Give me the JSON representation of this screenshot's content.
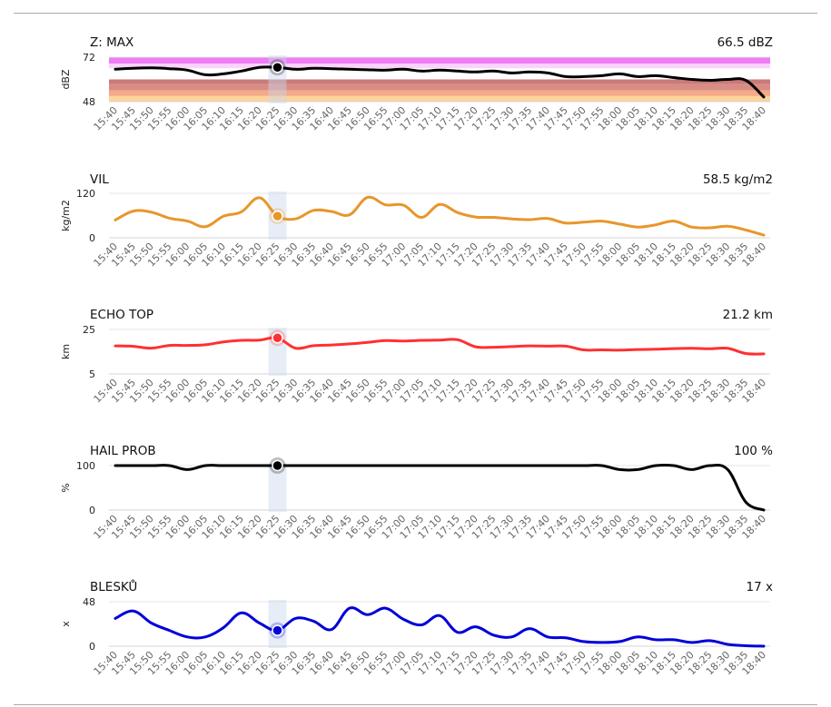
{
  "chart_data": [
    {
      "type": "line",
      "title": "Z: MAX",
      "current_value": "66.5 dBZ",
      "ylabel": "dBZ",
      "ylim": [
        48,
        72
      ],
      "yticks": [
        "72",
        "48"
      ],
      "color": "#000000",
      "bands": [
        {
          "from": 68.5,
          "to": 72,
          "color": "#f07cf4"
        },
        {
          "from": 66,
          "to": 68.5,
          "color": "#fad2fb"
        },
        {
          "from": 57.5,
          "to": 60,
          "color": "#c97a7a"
        },
        {
          "from": 54,
          "to": 57.5,
          "color": "#d98c84"
        },
        {
          "from": 51,
          "to": 54,
          "color": "#f4a987"
        },
        {
          "from": 48,
          "to": 51,
          "color": "#ffd39a"
        }
      ],
      "x": [
        "15:40",
        "15:45",
        "15:50",
        "15:55",
        "16:00",
        "16:05",
        "16:10",
        "16:15",
        "16:20",
        "16:25",
        "16:30",
        "16:35",
        "16:40",
        "16:45",
        "16:50",
        "16:55",
        "17:00",
        "17:05",
        "17:10",
        "17:15",
        "17:20",
        "17:25",
        "17:30",
        "17:35",
        "17:40",
        "17:45",
        "17:50",
        "17:55",
        "18:00",
        "18:05",
        "18:10",
        "18:15",
        "18:20",
        "18:25",
        "18:30",
        "18:35",
        "18:40"
      ],
      "values": [
        65.5,
        66,
        66.2,
        65.8,
        65,
        62.5,
        63,
        64.5,
        66.5,
        66.5,
        65.5,
        66,
        65.8,
        65.5,
        65.2,
        65,
        65.5,
        64.5,
        65,
        64.5,
        64,
        64.5,
        63.5,
        64,
        63.5,
        61.5,
        61.5,
        62,
        63,
        61.5,
        62,
        61,
        60,
        59.5,
        60,
        59.5,
        50.5
      ],
      "selected": "16:25"
    },
    {
      "type": "line",
      "title": "VIL",
      "current_value": "58.5 kg/m2",
      "ylabel": "kg/m2",
      "ylim": [
        0,
        120
      ],
      "yticks": [
        "120",
        "0"
      ],
      "color": "#e8962a",
      "x": [
        "15:40",
        "15:45",
        "15:50",
        "15:55",
        "16:00",
        "16:05",
        "16:10",
        "16:15",
        "16:20",
        "16:25",
        "16:30",
        "16:35",
        "16:40",
        "16:45",
        "16:50",
        "16:55",
        "17:00",
        "17:05",
        "17:10",
        "17:15",
        "17:20",
        "17:25",
        "17:30",
        "17:35",
        "17:40",
        "17:45",
        "17:50",
        "17:55",
        "18:00",
        "18:05",
        "18:10",
        "18:15",
        "18:20",
        "18:25",
        "18:30",
        "18:35",
        "18:40"
      ],
      "values": [
        48,
        72,
        69,
        53,
        45,
        30,
        58,
        70,
        108,
        58.5,
        51,
        74,
        71,
        62,
        109,
        89,
        88,
        55,
        90,
        68,
        56,
        55,
        51,
        49,
        52,
        40,
        42,
        45,
        37,
        29,
        35,
        45,
        29,
        27,
        31,
        21,
        7
      ],
      "selected": "16:25"
    },
    {
      "type": "line",
      "title": "ECHO TOP",
      "current_value": "21.2 km",
      "ylabel": "km",
      "ylim": [
        5,
        25
      ],
      "yticks": [
        "25",
        "5"
      ],
      "color": "#ff3030",
      "x": [
        "15:40",
        "15:45",
        "15:50",
        "15:55",
        "16:00",
        "16:05",
        "16:10",
        "16:15",
        "16:20",
        "16:25",
        "16:30",
        "16:35",
        "16:40",
        "16:45",
        "16:50",
        "16:55",
        "17:00",
        "17:05",
        "17:10",
        "17:15",
        "17:20",
        "17:25",
        "17:30",
        "17:35",
        "17:40",
        "17:45",
        "17:50",
        "17:55",
        "18:00",
        "18:05",
        "18:10",
        "18:15",
        "18:20",
        "18:25",
        "18:30",
        "18:35",
        "18:40"
      ],
      "values": [
        17.6,
        17.4,
        16.6,
        17.8,
        17.8,
        18.1,
        19.4,
        20.1,
        20.2,
        21.2,
        16.6,
        17.7,
        18,
        18.5,
        19.2,
        20,
        19.8,
        20.1,
        20.2,
        20.4,
        17.2,
        17,
        17.3,
        17.6,
        17.5,
        17.5,
        15.8,
        15.8,
        15.7,
        16,
        16.1,
        16.4,
        16.5,
        16.3,
        16.5,
        14.2,
        14
      ],
      "selected": "16:25"
    },
    {
      "type": "line",
      "title": "HAIL PROB",
      "current_value": "100 %",
      "ylabel": "%",
      "ylim": [
        0,
        100
      ],
      "yticks": [
        "100",
        "0"
      ],
      "color": "#000000",
      "x": [
        "15:40",
        "15:45",
        "15:50",
        "15:55",
        "16:00",
        "16:05",
        "16:10",
        "16:15",
        "16:20",
        "16:25",
        "16:30",
        "16:35",
        "16:40",
        "16:45",
        "16:50",
        "16:55",
        "17:00",
        "17:05",
        "17:10",
        "17:15",
        "17:20",
        "17:25",
        "17:30",
        "17:35",
        "17:40",
        "17:45",
        "17:50",
        "17:55",
        "18:00",
        "18:05",
        "18:10",
        "18:15",
        "18:20",
        "18:25",
        "18:30",
        "18:35",
        "18:40"
      ],
      "values": [
        100,
        100,
        100,
        100,
        91,
        100,
        100,
        100,
        100,
        100,
        100,
        100,
        100,
        100,
        100,
        100,
        100,
        100,
        100,
        100,
        100,
        100,
        100,
        100,
        100,
        100,
        100,
        100,
        91,
        91,
        100,
        100,
        91,
        100,
        91,
        18,
        0
      ],
      "selected": "16:25"
    },
    {
      "type": "line",
      "title": "BLESKŮ",
      "current_value": "17 x",
      "ylabel": "x",
      "ylim": [
        0,
        48
      ],
      "yticks": [
        "48",
        "0"
      ],
      "color": "#0000d8",
      "x": [
        "15:40",
        "15:45",
        "15:50",
        "15:55",
        "16:00",
        "16:05",
        "16:10",
        "16:15",
        "16:20",
        "16:25",
        "16:30",
        "16:35",
        "16:40",
        "16:45",
        "16:50",
        "16:55",
        "17:00",
        "17:05",
        "17:10",
        "17:15",
        "17:20",
        "17:25",
        "17:30",
        "17:35",
        "17:40",
        "17:45",
        "17:50",
        "17:55",
        "18:00",
        "18:05",
        "18:10",
        "18:15",
        "18:20",
        "18:25",
        "18:30",
        "18:35",
        "18:40"
      ],
      "values": [
        30,
        38,
        25,
        17,
        10,
        10,
        20,
        36,
        25,
        17,
        30,
        27,
        18,
        41,
        34,
        41,
        29,
        23,
        33,
        15,
        21,
        12,
        10,
        19,
        10,
        9,
        5,
        4,
        5,
        10,
        7,
        7,
        4,
        6,
        2,
        0.5,
        0
      ],
      "selected": "16:25"
    }
  ]
}
